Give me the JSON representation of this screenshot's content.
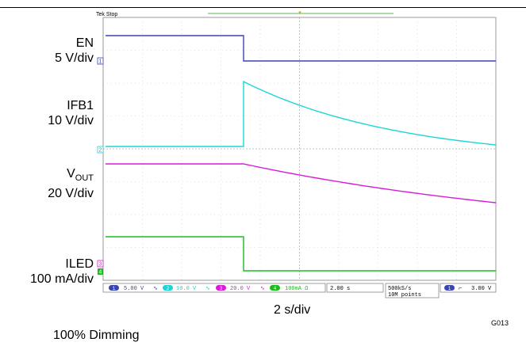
{
  "figure": {
    "status": "Tek Stop",
    "time_scale": "2 s/div",
    "caption": "100% Dimming",
    "figure_id": "G013"
  },
  "channels": [
    {
      "id": "1",
      "name": "EN",
      "scale": "5 V/div",
      "color": "#3b44b4"
    },
    {
      "id": "2",
      "name": "IFB1",
      "scale": "10 V/div",
      "color": "#19d6d6"
    },
    {
      "id": "3",
      "name": "V",
      "name_sub": "OUT",
      "scale": "20 V/div",
      "color": "#d81bd8"
    },
    {
      "id": "4",
      "name": "ILED",
      "scale": "100 mA/div",
      "color": "#1bbd1b"
    }
  ],
  "scope_readout": {
    "ch1": "5.00 V",
    "ch2": "10.0 V",
    "ch3": "20.0 V",
    "ch4": "100mA Ω",
    "timebase": "2.00 s",
    "sample_rate": "500kS/s",
    "record_length": "10M points",
    "trigger_level": "3.00 V"
  },
  "icons": [
    "channel-marker-icon",
    "trigger-marker-icon",
    "falling-edge-icon"
  ]
}
